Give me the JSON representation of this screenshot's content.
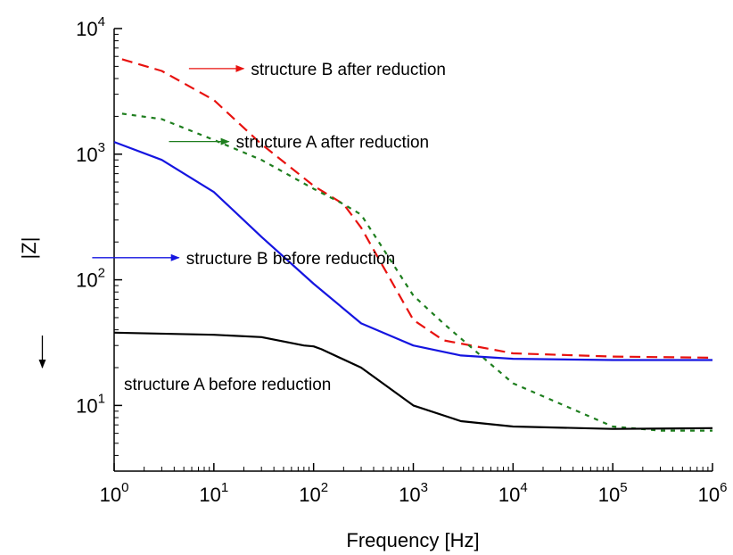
{
  "chart_data": {
    "type": "line",
    "xlabel": "Frequency [Hz]",
    "ylabel": "|Z|",
    "xscale": "log",
    "yscale": "log",
    "xlim": [
      1,
      1000000
    ],
    "ylim": [
      3,
      10000
    ],
    "grid": false,
    "x_ticks": [
      {
        "base": "10",
        "exp": "0"
      },
      {
        "base": "10",
        "exp": "1"
      },
      {
        "base": "10",
        "exp": "2"
      },
      {
        "base": "10",
        "exp": "3"
      },
      {
        "base": "10",
        "exp": "4"
      },
      {
        "base": "10",
        "exp": "5"
      },
      {
        "base": "10",
        "exp": "6"
      }
    ],
    "y_ticks": [
      {
        "base": "10",
        "exp": "1"
      },
      {
        "base": "10",
        "exp": "2"
      },
      {
        "base": "10",
        "exp": "3"
      },
      {
        "base": "10",
        "exp": "4"
      }
    ],
    "series": [
      {
        "name": "structure B after reduction",
        "color": "#e8120f",
        "dash": "dashed",
        "x": [
          1.2,
          3,
          10,
          30,
          100,
          200,
          300,
          1000,
          2000,
          10000,
          100000,
          1000000
        ],
        "y": [
          5700,
          4600,
          2700,
          1200,
          560,
          400,
          260,
          48,
          33,
          26,
          24.5,
          24
        ]
      },
      {
        "name": "structure A after reduction",
        "color": "#1e7e1e",
        "dash": "dotted",
        "x": [
          1.2,
          3,
          10,
          30,
          100,
          200,
          300,
          1000,
          2000,
          10000,
          100000,
          300000,
          1000000
        ],
        "y": [
          2100,
          1900,
          1300,
          900,
          530,
          400,
          330,
          75,
          45,
          15,
          6.8,
          6.3,
          6.3
        ]
      },
      {
        "name": "structure B before reduction",
        "color": "#1515e0",
        "dash": "solid",
        "x": [
          1,
          3,
          10,
          30,
          100,
          300,
          1000,
          3000,
          10000,
          100000,
          1000000
        ],
        "y": [
          1250,
          900,
          500,
          220,
          93,
          45,
          30,
          25,
          23.5,
          23,
          23
        ]
      },
      {
        "name": "structure A before reduction",
        "color": "#000000",
        "dash": "solid",
        "x": [
          1,
          10,
          30,
          80,
          100,
          120,
          300,
          1000,
          3000,
          10000,
          100000,
          1000000
        ],
        "y": [
          38,
          36.5,
          35,
          30,
          29.5,
          28,
          20,
          10,
          7.5,
          6.8,
          6.5,
          6.6
        ]
      }
    ],
    "annotations": [
      {
        "text": "structure B after reduction",
        "series": 0,
        "arrow_from": [
          0.75,
          4800
        ],
        "arrow_to": [
          1.3,
          4800
        ]
      },
      {
        "text": "structure A after reduction",
        "series": 1,
        "arrow_from": [
          0.55,
          1260
        ],
        "arrow_to": [
          1.15,
          1260
        ]
      },
      {
        "text": "structure B before reduction",
        "series": 2,
        "arrow_from": [
          -0.22,
          150
        ],
        "arrow_to": [
          0.65,
          150
        ]
      },
      {
        "text": "structure A before reduction",
        "series": 3,
        "arrow_from": [
          -0.72,
          36
        ],
        "arrow_to": [
          -0.72,
          20
        ]
      }
    ]
  }
}
